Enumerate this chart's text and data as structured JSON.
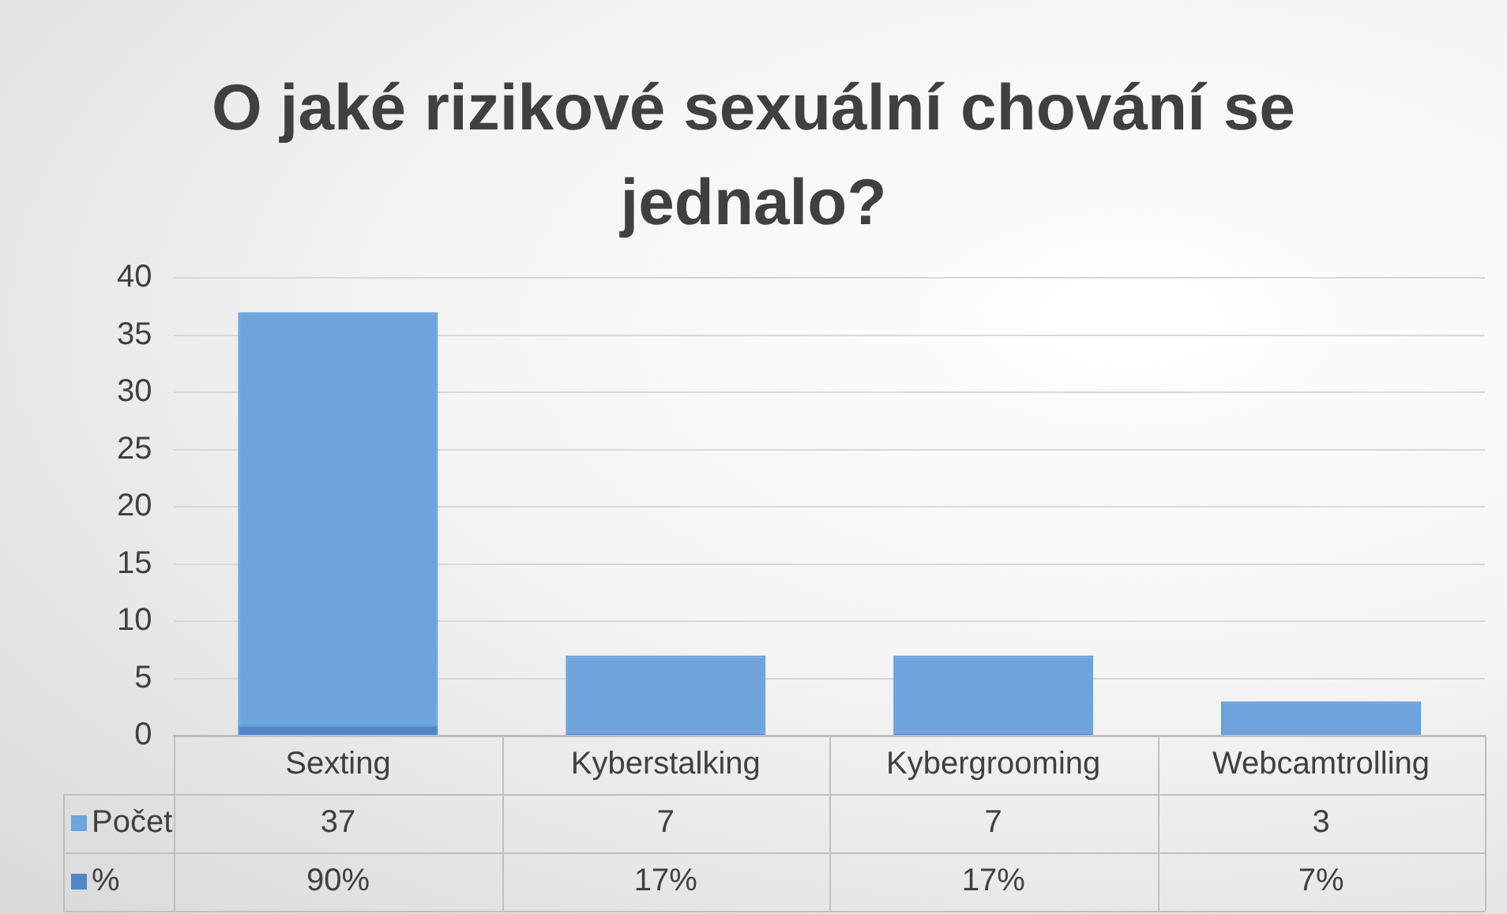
{
  "chart_data": {
    "type": "bar",
    "title": "O jaké rizikové sexuální chování se jednalo?",
    "categories": [
      "Sexting",
      "Kyberstalking",
      "Kybergrooming",
      "Webcamtrolling"
    ],
    "series": [
      {
        "name": "Počet",
        "color": "#6fa3dc",
        "values": [
          37,
          7,
          7,
          3
        ],
        "value_labels": [
          "37",
          "7",
          "7",
          "3"
        ]
      },
      {
        "name": "%",
        "color": "#4f86c6",
        "values": [
          0.9,
          0.17,
          0.17,
          0.07
        ],
        "value_labels": [
          "90%",
          "17%",
          "17%",
          "7%"
        ]
      }
    ],
    "ylim": [
      0,
      40
    ],
    "yticks": [
      0,
      5,
      10,
      15,
      20,
      25,
      30,
      35,
      40
    ],
    "grid": "y",
    "legend": "bottom left"
  }
}
